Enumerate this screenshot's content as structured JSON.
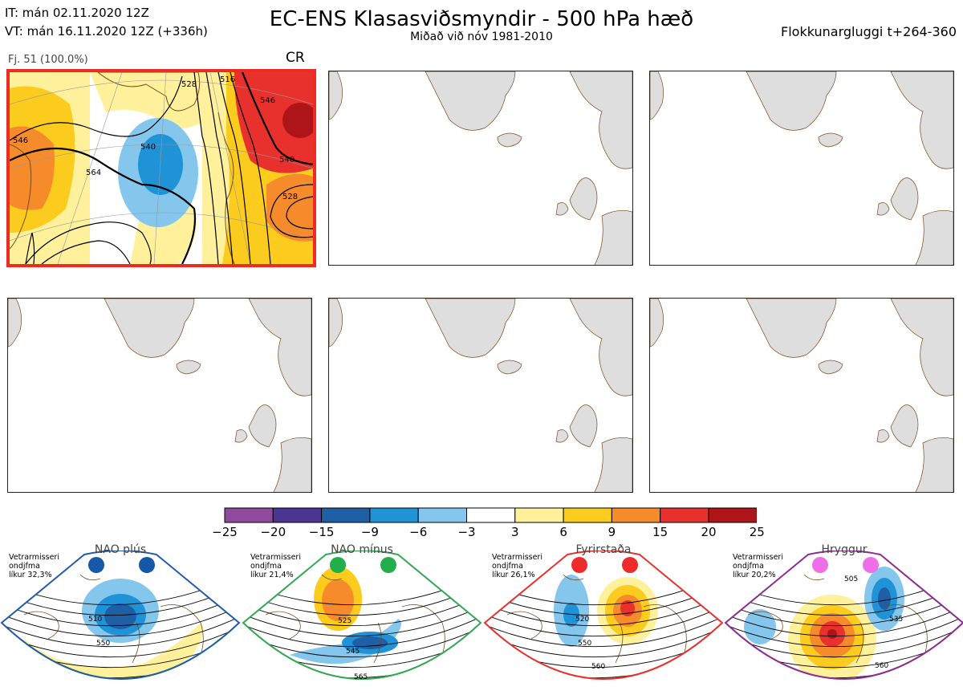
{
  "header": {
    "init_time": "IT: mán 02.11.2020 12Z",
    "valid_time": "VT: mán 16.11.2020 12Z  (+336h)",
    "title": "EC-ENS Klasasviðsmyndir - 500 hPa hæð",
    "subtitle": "Miðað við nóv 1981-2010",
    "window": "Flokkunargluggi t+264-360"
  },
  "panels": [
    {
      "member_label": "Fj. 51 (100.0%)",
      "regime": "CR",
      "selected": true,
      "contour_labels": [
        "546",
        "564",
        "540",
        "516",
        "546",
        "540",
        "528",
        "528"
      ]
    },
    {
      "member_label": "",
      "regime": "",
      "selected": false
    },
    {
      "member_label": "",
      "regime": "",
      "selected": false
    },
    {
      "member_label": "",
      "regime": "",
      "selected": false
    },
    {
      "member_label": "",
      "regime": "",
      "selected": false
    },
    {
      "member_label": "",
      "regime": "",
      "selected": false
    }
  ],
  "colorbar": {
    "ticks": [
      "−25",
      "−20",
      "−15",
      "−9",
      "−6",
      "−3",
      "3",
      "6",
      "9",
      "15",
      "20",
      "25"
    ],
    "colors": [
      "#8e4b9e",
      "#4b3592",
      "#1e5fa6",
      "#1f93d6",
      "#85c6ec",
      "#ffffff",
      "#fff19c",
      "#fbcb1e",
      "#f68b2b",
      "#e8312d",
      "#ad1519"
    ]
  },
  "regimes": [
    {
      "name": "NAO plús",
      "season": "Vetrarmisseri",
      "stat": "ondjfma",
      "likelihood": "líkur 32,3%",
      "frame_color": "#1f5ba6",
      "dot_color": "#1558a8",
      "contour_labels": [
        "510",
        "550"
      ]
    },
    {
      "name": "NAO mínus",
      "season": "Vetrarmisseri",
      "stat": "ondjfma",
      "likelihood": "líkur 21,4%",
      "frame_color": "#32a853",
      "dot_color": "#22ae4a",
      "contour_labels": [
        "525",
        "545",
        "565"
      ]
    },
    {
      "name": "Fyrirstaða",
      "season": "Vetrarmisseri",
      "stat": "ondjfma",
      "likelihood": "líkur 26,1%",
      "frame_color": "#e8312d",
      "dot_color": "#ee2a2a",
      "contour_labels": [
        "520",
        "550",
        "560"
      ]
    },
    {
      "name": "Hryggur",
      "season": "Vetrarmisseri",
      "stat": "ondjfma",
      "likelihood": "líkur 20,2%",
      "frame_color": "#8b2c8e",
      "dot_color": "#ee6ee8",
      "contour_labels": [
        "505",
        "535",
        "560"
      ]
    }
  ]
}
